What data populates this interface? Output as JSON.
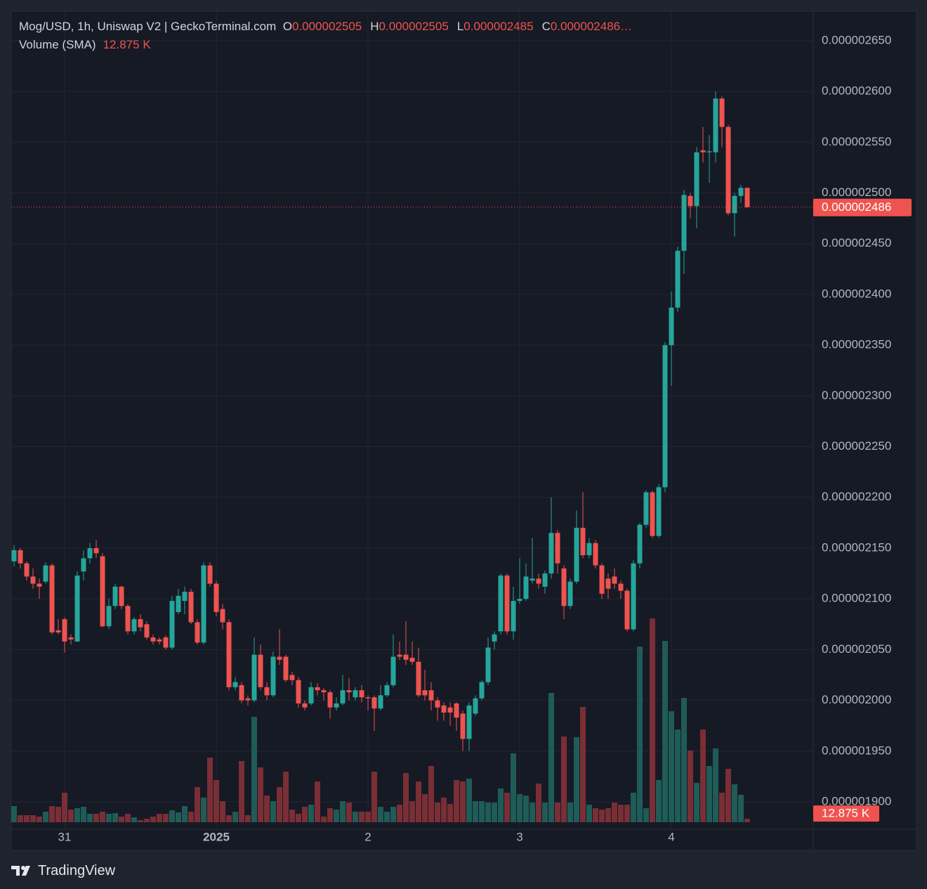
{
  "chart_data": {
    "type": "candlestick",
    "title": "Mog/USD, 1h, Uniswap V2 | GeckoTerminal.com",
    "ohlc_legend": [
      {
        "label": "O",
        "value": "0.000002505"
      },
      {
        "label": "H",
        "value": "0.000002505"
      },
      {
        "label": "L",
        "value": "0.000002485"
      },
      {
        "label": "C",
        "value": "0.000002486…"
      }
    ],
    "volume_legend": {
      "label": "Volume (SMA)",
      "value": "12.875 K"
    },
    "categories": [
      null,
      null,
      null,
      null,
      null,
      null,
      null,
      null,
      "31",
      null,
      null,
      null,
      null,
      null,
      null,
      null,
      null,
      null,
      null,
      null,
      null,
      null,
      null,
      null,
      null,
      null,
      null,
      null,
      null,
      null,
      null,
      null,
      "2025",
      null,
      null,
      null,
      null,
      null,
      null,
      null,
      null,
      null,
      null,
      null,
      null,
      null,
      null,
      null,
      null,
      null,
      null,
      null,
      null,
      null,
      null,
      null,
      "2",
      null,
      null,
      null,
      null,
      null,
      null,
      null,
      null,
      null,
      null,
      null,
      null,
      null,
      null,
      null,
      null,
      null,
      null,
      null,
      null,
      null,
      null,
      null,
      "3",
      null,
      null,
      null,
      null,
      null,
      null,
      null,
      null,
      null,
      null,
      null,
      null,
      null,
      null,
      null,
      null,
      null,
      null,
      null,
      null,
      null,
      null,
      null,
      "4",
      null,
      null,
      null,
      null,
      null,
      null,
      null,
      null,
      null,
      null,
      null,
      null
    ],
    "open": [
      2.137e-06,
      2.148e-06,
      2.135e-06,
      2.122e-06,
      2.115e-06,
      2.117e-06,
      2.133e-06,
      2.069e-06,
      2.08e-06,
      2.062e-06,
      2.058e-06,
      2.127e-06,
      2.14e-06,
      2.15e-06,
      2.142e-06,
      2.073e-06,
      2.093e-06,
      2.112e-06,
      2.093e-06,
      2.068e-06,
      2.08e-06,
      2.075e-06,
      2.062e-06,
      2.06e-06,
      2.062e-06,
      2.052e-06,
      2.087e-06,
      2.098e-06,
      2.107e-06,
      2.077e-06,
      2.057e-06,
      2.133e-06,
      2.115e-06,
      2.09e-06,
      2.077e-06,
      2.013e-06,
      2.015e-06,
      2.002e-06,
      2e-06,
      2.045e-06,
      2.013e-06,
      2.005e-06,
      2.043e-06,
      2.043e-06,
      2.025e-06,
      2.02e-06,
      1.997e-06,
      1.997e-06,
      2.013e-06,
      2.01e-06,
      2.008e-06,
      1.993e-06,
      1.997e-06,
      2.01e-06,
      2.003e-06,
      2.01e-06,
      2.003e-06,
      2.003e-06,
      1.992e-06,
      2.005e-06,
      2.015e-06,
      2.045e-06,
      2.045e-06,
      2.042e-06,
      2.038e-06,
      2.01e-06,
      2.01e-06,
      2e-06,
      1.995e-06,
      1.993e-06,
      1.997e-06,
      1.987e-06,
      1.962e-06,
      1.987e-06,
      2.002e-06,
      2.018e-06,
      2.058e-06,
      2.068e-06,
      2.123e-06,
      2.068e-06,
      2.098e-06,
      2.1e-06,
      2.118e-06,
      2.12e-06,
      2.112e-06,
      2.125e-06,
      2.165e-06,
      2.13e-06,
      2.093e-06,
      2.117e-06,
      2.17e-06,
      2.143e-06,
      2.155e-06,
      2.133e-06,
      2.12e-06,
      2.122e-06,
      2.115e-06,
      2.108e-06,
      2.07e-06,
      2.135e-06,
      2.173e-06,
      2.205e-06,
      2.162e-06,
      2.21e-06,
      2.35e-06,
      2.387e-06,
      2.443e-06,
      2.497e-06,
      2.487e-06,
      2.542e-06,
      2.54e-06,
      2.54e-06,
      2.593e-06,
      2.565e-06,
      2.48e-06,
      2.497e-06,
      2.505e-06
    ],
    "high": [
      2.153e-06,
      2.15e-06,
      2.137e-06,
      2.13e-06,
      2.12e-06,
      2.136e-06,
      2.135e-06,
      2.08e-06,
      2.082e-06,
      2.065e-06,
      2.127e-06,
      2.148e-06,
      2.155e-06,
      2.158e-06,
      2.145e-06,
      2.1e-06,
      2.115e-06,
      2.113e-06,
      2.095e-06,
      2.082e-06,
      2.085e-06,
      2.078e-06,
      2.065e-06,
      2.062e-06,
      2.064e-06,
      2.103e-06,
      2.11e-06,
      2.112e-06,
      2.11e-06,
      2.08e-06,
      2.136e-06,
      2.136e-06,
      2.118e-06,
      2.095e-06,
      2.08e-06,
      2.023e-06,
      2.018e-06,
      2.005e-06,
      2.062e-06,
      2.055e-06,
      2.018e-06,
      2.048e-06,
      2.07e-06,
      2.045e-06,
      2.028e-06,
      2.023e-06,
      2e-06,
      2.018e-06,
      2.017e-06,
      2.012e-06,
      2.01e-06,
      2.003e-06,
      2.025e-06,
      2.022e-06,
      2.013e-06,
      2.015e-06,
      2.005e-06,
      2.005e-06,
      2.015e-06,
      2.018e-06,
      2.065e-06,
      2.058e-06,
      2.078e-06,
      2.058e-06,
      2.052e-06,
      2.03e-06,
      2.018e-06,
      2.003e-06,
      1.998e-06,
      1.998e-06,
      1.998e-06,
      1.99e-06,
      1.998e-06,
      2.005e-06,
      2.02e-06,
      2.062e-06,
      2.068e-06,
      2.125e-06,
      2.125e-06,
      2.112e-06,
      2.14e-06,
      2.135e-06,
      2.16e-06,
      2.125e-06,
      2.128e-06,
      2.2e-06,
      2.168e-06,
      2.133e-06,
      2.12e-06,
      2.187e-06,
      2.205e-06,
      2.16e-06,
      2.158e-06,
      2.135e-06,
      2.125e-06,
      2.13e-06,
      2.118e-06,
      2.11e-06,
      2.138e-06,
      2.175e-06,
      2.207e-06,
      2.207e-06,
      2.213e-06,
      2.353e-06,
      2.403e-06,
      2.447e-06,
      2.503e-06,
      2.5e-06,
      2.545e-06,
      2.565e-06,
      2.557e-06,
      2.6e-06,
      2.595e-06,
      2.567e-06,
      2.5e-06,
      2.508e-06,
      2.505e-06
    ],
    "low": [
      2.132e-06,
      2.13e-06,
      2.118e-06,
      2.11e-06,
      2.1e-06,
      2.115e-06,
      2.065e-06,
      2.065e-06,
      2.047e-06,
      2.055e-06,
      2.058e-06,
      2.118e-06,
      2.135e-06,
      2.14e-06,
      2.072e-06,
      2.07e-06,
      2.09e-06,
      2.09e-06,
      2.065e-06,
      2.065e-06,
      2.068e-06,
      2.06e-06,
      2.055e-06,
      2.055e-06,
      2.05e-06,
      2.05e-06,
      2.085e-06,
      2.085e-06,
      2.075e-06,
      2.055e-06,
      2.055e-06,
      2.112e-06,
      2.083e-06,
      2.07e-06,
      2.01e-06,
      2.01e-06,
      1.997e-06,
      1.995e-06,
      1.998e-06,
      2.01e-06,
      2e-06,
      2.003e-06,
      2.035e-06,
      2.018e-06,
      2.015e-06,
      1.993e-06,
      1.99e-06,
      1.995e-06,
      2.005e-06,
      2e-06,
      1.982e-06,
      1.99e-06,
      1.995e-06,
      2e-06,
      2e-06,
      1.998e-06,
      1.99e-06,
      1.97e-06,
      1.99e-06,
      2.003e-06,
      2.013e-06,
      2.04e-06,
      2.035e-06,
      2.035e-06,
      2.003e-06,
      2e-06,
      1.99e-06,
      1.98e-06,
      1.98e-06,
      1.975e-06,
      1.97e-06,
      1.95e-06,
      1.95e-06,
      1.985e-06,
      2e-06,
      2.015e-06,
      2.05e-06,
      2.065e-06,
      2.065e-06,
      2.06e-06,
      2.095e-06,
      2.098e-06,
      2.115e-06,
      2.11e-06,
      2.105e-06,
      2.12e-06,
      2.125e-06,
      2.08e-06,
      2.09e-06,
      2.115e-06,
      2.14e-06,
      2.14e-06,
      2.13e-06,
      2.1e-06,
      2.1e-06,
      2.11e-06,
      2.1e-06,
      2.068e-06,
      2.068e-06,
      2.13e-06,
      2.17e-06,
      2.16e-06,
      2.16e-06,
      2.205e-06,
      2.31e-06,
      2.383e-06,
      2.42e-06,
      2.475e-06,
      2.465e-06,
      2.53e-06,
      2.51e-06,
      2.53e-06,
      2.545e-06,
      2.478e-06,
      2.457e-06,
      2.49e-06,
      2.485e-06
    ],
    "close": [
      2.148e-06,
      2.135e-06,
      2.122e-06,
      2.115e-06,
      2.112e-06,
      2.133e-06,
      2.067e-06,
      2.067e-06,
      2.058e-06,
      2.06e-06,
      2.123e-06,
      2.14e-06,
      2.15e-06,
      2.145e-06,
      2.073e-06,
      2.093e-06,
      2.112e-06,
      2.093e-06,
      2.068e-06,
      2.08e-06,
      2.072e-06,
      2.062e-06,
      2.058e-06,
      2.058e-06,
      2.052e-06,
      2.098e-06,
      2.103e-06,
      2.107e-06,
      2.077e-06,
      2.057e-06,
      2.133e-06,
      2.115e-06,
      2.087e-06,
      2.077e-06,
      2.013e-06,
      2.018e-06,
      2e-06,
      2e-06,
      2.045e-06,
      2.013e-06,
      2.005e-06,
      2.043e-06,
      2.04e-06,
      2.02e-06,
      2.02e-06,
      1.997e-06,
      1.993e-06,
      2.013e-06,
      2.01e-06,
      2.008e-06,
      1.993e-06,
      1.997e-06,
      2.01e-06,
      2.008e-06,
      2.01e-06,
      2.003e-06,
      2.002e-06,
      1.992e-06,
      2.005e-06,
      2.015e-06,
      2.043e-06,
      2.043e-06,
      2.04e-06,
      2.038e-06,
      2.005e-06,
      2.005e-06,
      2e-06,
      1.993e-06,
      1.988e-06,
      1.988e-06,
      1.983e-06,
      1.962e-06,
      1.995e-06,
      2.002e-06,
      2.018e-06,
      2.052e-06,
      2.065e-06,
      2.123e-06,
      2.068e-06,
      2.098e-06,
      2.1e-06,
      2.122e-06,
      2.12e-06,
      2.115e-06,
      2.125e-06,
      2.165e-06,
      2.135e-06,
      2.093e-06,
      2.117e-06,
      2.17e-06,
      2.143e-06,
      2.155e-06,
      2.133e-06,
      2.105e-06,
      2.11e-06,
      2.115e-06,
      2.108e-06,
      2.07e-06,
      2.135e-06,
      2.173e-06,
      2.205e-06,
      2.162e-06,
      2.21e-06,
      2.35e-06,
      2.387e-06,
      2.443e-06,
      2.498e-06,
      2.487e-06,
      2.54e-06,
      2.54e-06,
      2.541e-06,
      2.593e-06,
      2.565e-06,
      2.48e-06,
      2.497e-06,
      2.505e-06,
      2.486e-06
    ],
    "volume": [
      23,
      10,
      10,
      10,
      8,
      15,
      23,
      22,
      42,
      18,
      20,
      22,
      12,
      12,
      15,
      12,
      13,
      8,
      12,
      7,
      3,
      5,
      8,
      12,
      12,
      17,
      14,
      23,
      15,
      50,
      35,
      92,
      60,
      30,
      10,
      15,
      87,
      10,
      150,
      78,
      38,
      30,
      50,
      72,
      18,
      12,
      22,
      25,
      58,
      8,
      20,
      18,
      30,
      28,
      15,
      15,
      15,
      72,
      22,
      15,
      22,
      25,
      70,
      30,
      58,
      40,
      80,
      28,
      35,
      26,
      60,
      58,
      62,
      30,
      30,
      28,
      28,
      48,
      42,
      98,
      40,
      38,
      28,
      55,
      28,
      184,
      28,
      122,
      28,
      121,
      164,
      25,
      20,
      18,
      20,
      28,
      25,
      25,
      42,
      250,
      20,
      290,
      60,
      258,
      158,
      132,
      177,
      102,
      56,
      132,
      80,
      105,
      42,
      76,
      54,
      39,
      5
    ],
    "ylim": [
      1.873e-06,
      2.679e-06
    ],
    "yticks": [
      {
        "value": 1.9e-06,
        "label": "0.000001900"
      },
      {
        "value": 1.95e-06,
        "label": "0.000001950"
      },
      {
        "value": 2e-06,
        "label": "0.000002000"
      },
      {
        "value": 2.05e-06,
        "label": "0.000002050"
      },
      {
        "value": 2.1e-06,
        "label": "0.000002100"
      },
      {
        "value": 2.15e-06,
        "label": "0.000002150"
      },
      {
        "value": 2.2e-06,
        "label": "0.000002200"
      },
      {
        "value": 2.25e-06,
        "label": "0.000002250"
      },
      {
        "value": 2.3e-06,
        "label": "0.000002300"
      },
      {
        "value": 2.35e-06,
        "label": "0.000002350"
      },
      {
        "value": 2.4e-06,
        "label": "0.000002400"
      },
      {
        "value": 2.45e-06,
        "label": "0.000002450"
      },
      {
        "value": 2.5e-06,
        "label": "0.000002500"
      },
      {
        "value": 2.55e-06,
        "label": "0.000002550"
      },
      {
        "value": 2.6e-06,
        "label": "0.000002600"
      },
      {
        "value": 2.65e-06,
        "label": "0.000002650"
      }
    ],
    "volume_ylim": [
      0,
      300
    ],
    "last_price": {
      "value": 2.486e-06,
      "label": "0.000002486"
    },
    "last_volume_sma": {
      "value": 12.875,
      "label": "12.875 K"
    },
    "up_color": "#26a69a",
    "down_color": "#ef5350",
    "volume_up_color": "#1f5c57",
    "volume_down_color": "#7a2e35",
    "grid": true,
    "branding": "TradingView"
  }
}
